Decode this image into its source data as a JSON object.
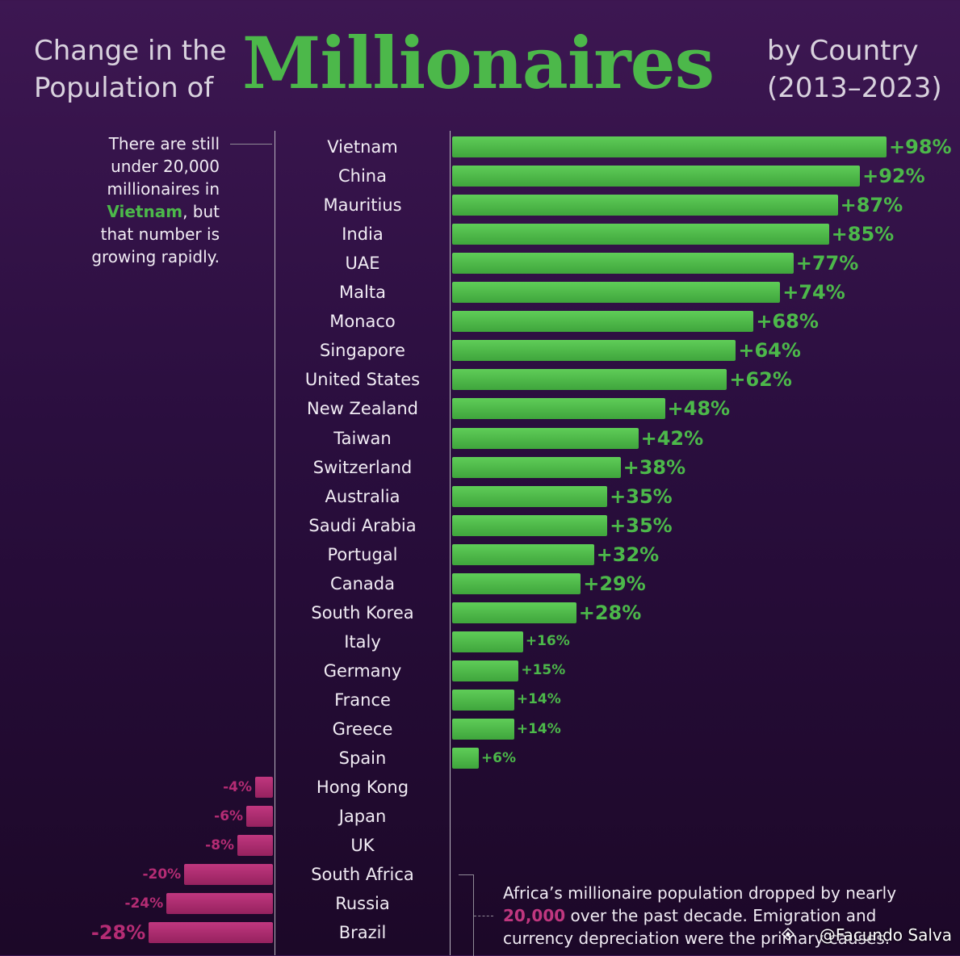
{
  "header": {
    "title_left_1": "Change in the",
    "title_left_2": "Population of",
    "title_main": "Millionaires",
    "title_right_1": "by Country",
    "title_right_2": "(2013–2023)"
  },
  "note_left": {
    "line1": "There are still",
    "line2": "under 20,000",
    "line3": "millionaires in",
    "highlight": "Vietnam",
    "after_highlight": ", but",
    "line5": "that number is",
    "line6": "growing rapidly."
  },
  "note_bottom": {
    "line1": "Africa’s millionaire population dropped by nearly",
    "highlight": "20,000",
    "rest2": " over the past decade. Emigration and",
    "line3": "currency depreciation were the primary causes."
  },
  "credit": "@Facundo Salva",
  "colors": {
    "positive": "#4cb84a",
    "negative": "#b52c74",
    "background": "#2a0e3e"
  },
  "chart_data": {
    "type": "bar",
    "orientation": "horizontal",
    "categories": [
      "Vietnam",
      "China",
      "Mauritius",
      "India",
      "UAE",
      "Malta",
      "Monaco",
      "Singapore",
      "United States",
      "New Zealand",
      "Taiwan",
      "Switzerland",
      "Australia",
      "Saudi Arabia",
      "Portugal",
      "Canada",
      "South Korea",
      "Italy",
      "Germany",
      "France",
      "Greece",
      "Spain",
      "Hong Kong",
      "Japan",
      "UK",
      "South Africa",
      "Russia",
      "Brazil"
    ],
    "values": [
      98,
      92,
      87,
      85,
      77,
      74,
      68,
      64,
      62,
      48,
      42,
      38,
      35,
      35,
      32,
      29,
      28,
      16,
      15,
      14,
      14,
      6,
      -4,
      -6,
      -8,
      -20,
      -24,
      -28
    ],
    "labels": [
      "+98%",
      "+92%",
      "+87%",
      "+85%",
      "+77%",
      "+74%",
      "+68%",
      "+64%",
      "+62%",
      "+48%",
      "+42%",
      "+38%",
      "+35%",
      "+35%",
      "+32%",
      "+29%",
      "+28%",
      "+16%",
      "+15%",
      "+14%",
      "+14%",
      "+6%",
      "-4%",
      "-6%",
      "-8%",
      "-20%",
      "-24%",
      "-28%"
    ],
    "unit": "%"
  }
}
